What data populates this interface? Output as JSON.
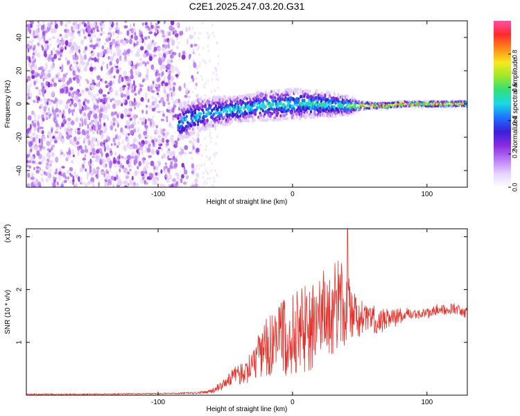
{
  "figure_title": "C2E1.2025.247.03.20.G31",
  "colors": {
    "snr_line": "#e8302a",
    "frame": "#000000",
    "colormap": [
      "#ffffff",
      "#e6d2ff",
      "#b97af5",
      "#8a2be2",
      "#3a1fd8",
      "#1f6fff",
      "#19d7e6",
      "#2fe07a",
      "#9fe82a",
      "#f6e81d",
      "#ff8a1a",
      "#ff2a2a",
      "#ff4da6"
    ]
  },
  "chart_data": [
    {
      "type": "heatmap",
      "title": "",
      "xlabel": "Height of straight line (km)",
      "ylabel": "Frequency (Hz)",
      "xlim": [
        -198,
        130
      ],
      "ylim": [
        -50,
        50
      ],
      "xticks": [
        -100,
        0,
        100
      ],
      "xtick_labels": [
        "-100",
        "0",
        "100"
      ],
      "yticks": [
        -40,
        -20,
        0,
        20,
        40
      ],
      "ytick_labels": [
        "-40",
        "-20",
        "0",
        "20",
        "40"
      ],
      "noise_region_km": [
        -198,
        -70
      ],
      "signal_track": {
        "heights_km": [
          -85,
          -75,
          -60,
          -40,
          -20,
          0,
          20,
          40,
          50,
          60,
          70,
          80,
          90,
          100,
          110,
          120,
          130
        ],
        "center_freq_hz": [
          -12,
          -8,
          -5,
          -3,
          -1,
          0,
          0,
          -1,
          -1,
          -1,
          -1,
          0,
          0,
          0,
          0,
          0,
          0
        ],
        "spread_hz": [
          12,
          10,
          9,
          8,
          9,
          9,
          8,
          6,
          3,
          2,
          2,
          2,
          2,
          2,
          2,
          2,
          2
        ],
        "peak_amplitude": [
          0.45,
          0.5,
          0.5,
          0.55,
          0.55,
          0.55,
          0.55,
          0.6,
          0.85,
          0.9,
          0.92,
          0.95,
          0.95,
          0.95,
          0.95,
          0.92,
          0.9
        ]
      },
      "colorbar": {
        "label": "Normalized spectral amplitude",
        "range": [
          0,
          1
        ],
        "ticks": [
          0.0,
          0.2,
          0.4,
          0.6,
          0.8
        ],
        "tick_labels": [
          "0.0",
          "0.2",
          "0.4",
          "0.6",
          "0.8"
        ]
      }
    },
    {
      "type": "line",
      "title": "",
      "xlabel": "Height of straight line (km)",
      "ylabel": "SNR (10 * v/v)",
      "scale_label": "(x10",
      "scale_exponent": "4",
      "xlim": [
        -198,
        130
      ],
      "ylim": [
        0,
        3.15
      ],
      "xticks": [
        -100,
        0,
        100
      ],
      "xtick_labels": [
        "-100",
        "0",
        "100"
      ],
      "yticks": [
        1,
        2,
        3
      ],
      "ytick_labels": [
        "1",
        "2",
        "3"
      ],
      "series": [
        {
          "name": "SNR",
          "x": [
            -198,
            -150,
            -100,
            -70,
            -60,
            -50,
            -45,
            -40,
            -35,
            -30,
            -25,
            -20,
            -15,
            -10,
            -5,
            0,
            5,
            10,
            15,
            20,
            25,
            30,
            35,
            40,
            45,
            50,
            55,
            60,
            65,
            70,
            75,
            80,
            85,
            90,
            95,
            100,
            105,
            110,
            115,
            120,
            125,
            130
          ],
          "values": [
            0.02,
            0.02,
            0.03,
            0.04,
            0.08,
            0.22,
            0.35,
            0.4,
            0.45,
            0.6,
            0.75,
            0.9,
            0.95,
            1.05,
            1.1,
            1.15,
            1.2,
            1.3,
            1.35,
            1.45,
            1.55,
            1.65,
            1.7,
            1.75,
            1.6,
            1.45,
            1.5,
            1.45,
            1.4,
            1.45,
            1.45,
            1.5,
            1.55,
            1.5,
            1.55,
            1.55,
            1.6,
            1.65,
            1.6,
            1.65,
            1.6,
            1.55
          ],
          "noise_amplitude": [
            0.01,
            0.01,
            0.01,
            0.02,
            0.04,
            0.12,
            0.15,
            0.2,
            0.25,
            0.35,
            0.45,
            0.55,
            0.6,
            0.7,
            0.75,
            0.8,
            0.8,
            0.85,
            0.9,
            0.9,
            0.9,
            0.9,
            0.85,
            0.8,
            0.5,
            0.35,
            0.3,
            0.28,
            0.25,
            0.2,
            0.18,
            0.15,
            0.12,
            0.1,
            0.1,
            0.1,
            0.1,
            0.1,
            0.1,
            0.1,
            0.1,
            0.1
          ],
          "peak": {
            "x": 41,
            "y": 3.15
          }
        }
      ]
    }
  ]
}
